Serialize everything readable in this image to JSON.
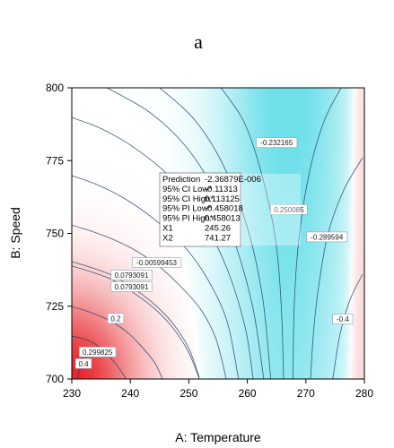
{
  "figure": {
    "panel_letter": "a"
  },
  "chart_data": {
    "type": "contour",
    "xlabel": "A: Temperature",
    "ylabel": "B: Speed",
    "xlim": [
      230,
      280
    ],
    "ylim": [
      700,
      800
    ],
    "x_ticks": [
      "230",
      "240",
      "250",
      "260",
      "270",
      "280"
    ],
    "y_ticks": [
      "700",
      "725",
      "750",
      "775",
      "800"
    ],
    "colors": {
      "positive": "#e8262b",
      "zero": "#ffffff",
      "negative": "#4fd9e6",
      "contour_line": "#1f3f66"
    },
    "contours": [
      {
        "label": "0.4",
        "points": [
          [
            231.0,
            700.0
          ],
          [
            231.6,
            705.0
          ],
          [
            232.3,
            710.0
          ]
        ],
        "label_at": [
          232.0,
          705.3
        ]
      },
      {
        "label": "0.299825",
        "points": [
          [
            229.7,
            714.8
          ],
          [
            232.0,
            713.8
          ],
          [
            234.0,
            712.0
          ],
          [
            235.8,
            709.0
          ],
          [
            237.6,
            705.0
          ],
          [
            239.3,
            700.0
          ]
        ],
        "label_at": [
          234.4,
          709.3
        ]
      },
      {
        "label": "0.2",
        "points": [
          [
            229.7,
            725.0
          ],
          [
            233.0,
            723.0
          ],
          [
            236.5,
            720.0
          ],
          [
            239.5,
            716.0
          ],
          [
            242.0,
            711.0
          ],
          [
            244.2,
            705.5
          ],
          [
            245.5,
            700.0
          ]
        ],
        "label_at": [
          237.5,
          720.8
        ]
      },
      {
        "label": "0.0793091",
        "points": [
          [
            229.7,
            739.0
          ],
          [
            233.0,
            737.0
          ],
          [
            237.0,
            734.0
          ],
          [
            241.0,
            729.0
          ],
          [
            244.5,
            723.5
          ],
          [
            247.5,
            717.0
          ],
          [
            250.0,
            709.0
          ],
          [
            251.8,
            700.0
          ]
        ],
        "label_at": [
          240.2,
          735.7
        ]
      },
      {
        "label": "0.0793091",
        "points": [
          [
            229.7,
            740.5
          ],
          [
            233.0,
            738.5
          ],
          [
            237.0,
            735.5
          ],
          [
            241.0,
            730.5
          ],
          [
            244.5,
            725.0
          ],
          [
            247.5,
            718.5
          ],
          [
            250.0,
            710.5
          ],
          [
            251.8,
            700.6
          ]
        ],
        "label_at": [
          240.2,
          731.7
        ]
      },
      {
        "label": "-0.00599453",
        "points": [
          [
            229.7,
            753.0
          ],
          [
            233.0,
            751.0
          ],
          [
            237.0,
            748.0
          ],
          [
            241.0,
            744.0
          ],
          [
            245.0,
            738.5
          ],
          [
            248.5,
            732.0
          ],
          [
            252.0,
            724.0
          ],
          [
            254.6,
            714.0
          ],
          [
            256.4,
            700.0
          ]
        ],
        "label_at": [
          244.5,
          740.0
        ]
      },
      {
        "label": "",
        "points": [
          [
            229.7,
            770.0
          ],
          [
            234.0,
            767.0
          ],
          [
            239.0,
            762.0
          ],
          [
            244.0,
            755.0
          ],
          [
            249.0,
            746.0
          ],
          [
            253.0,
            735.0
          ],
          [
            256.5,
            720.0
          ],
          [
            258.5,
            700.0
          ]
        ],
        "label_at": null
      },
      {
        "label": "",
        "points": [
          [
            229.7,
            790.0
          ],
          [
            235.0,
            786.0
          ],
          [
            241.0,
            779.0
          ],
          [
            247.0,
            769.0
          ],
          [
            252.0,
            756.0
          ],
          [
            256.5,
            738.0
          ],
          [
            259.6,
            718.0
          ],
          [
            261.0,
            700.0
          ]
        ],
        "label_at": null
      },
      {
        "label": "",
        "points": [
          [
            236.0,
            800.0
          ],
          [
            243.0,
            792.0
          ],
          [
            249.0,
            781.0
          ],
          [
            254.0,
            766.0
          ],
          [
            258.0,
            746.0
          ],
          [
            261.0,
            724.0
          ],
          [
            262.8,
            700.0
          ]
        ],
        "label_at": null
      },
      {
        "label": "",
        "points": [
          [
            245.0,
            800.0
          ],
          [
            251.0,
            789.0
          ],
          [
            256.0,
            773.0
          ],
          [
            260.0,
            752.0
          ],
          [
            262.6,
            728.0
          ],
          [
            264.0,
            700.0
          ]
        ],
        "label_at": null
      },
      {
        "label": "-0.232165",
        "points": [
          [
            255.5,
            800.0
          ],
          [
            259.5,
            788.0
          ],
          [
            262.5,
            770.0
          ],
          [
            264.8,
            748.0
          ],
          [
            265.8,
            725.0
          ],
          [
            266.2,
            700.0
          ]
        ],
        "label_at": [
          265.0,
          781.2
        ]
      },
      {
        "label": "",
        "points": [
          [
            276.0,
            800.0
          ],
          [
            273.0,
            788.0
          ],
          [
            270.5,
            770.0
          ],
          [
            268.8,
            748.0
          ],
          [
            268.0,
            725.0
          ],
          [
            267.8,
            700.0
          ]
        ],
        "label_at": null
      },
      {
        "label": "-0.289594",
        "points": [
          [
            279.7,
            776.0
          ],
          [
            276.5,
            765.0
          ],
          [
            273.8,
            750.0
          ],
          [
            272.2,
            732.0
          ],
          [
            271.3,
            716.0
          ],
          [
            270.8,
            700.0
          ]
        ],
        "label_at": [
          273.6,
          748.8
        ]
      },
      {
        "label": "-0.4",
        "points": [
          [
            279.7,
            736.0
          ],
          [
            277.5,
            727.0
          ],
          [
            275.8,
            715.0
          ],
          [
            274.6,
            700.0
          ]
        ],
        "label_at": [
          276.3,
          720.6
        ]
      }
    ],
    "inline_labels": [
      {
        "label": "0.250085",
        "at": [
          267.1,
          758.2
        ]
      }
    ],
    "tooltip": {
      "anchor": [
        245.26,
        741.27
      ],
      "rows": [
        {
          "name": "Prediction",
          "value": "-2.36879E-006"
        },
        {
          "name": "95% CI Low*",
          "value": "-0.11313"
        },
        {
          "name": "95% CI High*",
          "value": "0.113125"
        },
        {
          "name": "95% PI Low*",
          "value": "-0.458018"
        },
        {
          "name": "95% PI High*",
          "value": "0.458013"
        },
        {
          "name": "X1",
          "value": "245.26"
        },
        {
          "name": "X2",
          "value": "741.27"
        }
      ]
    }
  }
}
